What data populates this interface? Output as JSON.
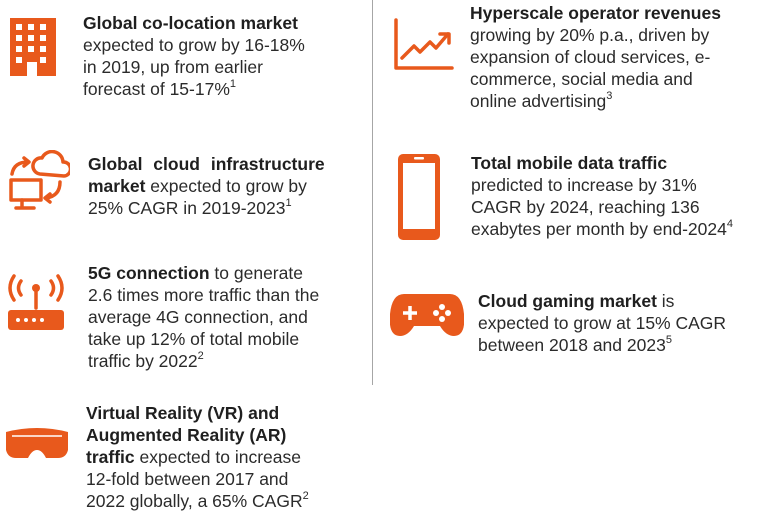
{
  "colors": {
    "accent": "#e8591c",
    "text": "#2b2b2b",
    "divider": "#a6a6a6"
  },
  "items": [
    {
      "icon": "office-building-icon",
      "bold": "Global co-location market",
      "lines": [
        "expected to grow by 16-18%",
        "in 2019, up from earlier",
        "forecast of 15-17%"
      ],
      "sup": "1"
    },
    {
      "icon": "cloud-computer-sync-icon",
      "bold1": "Global cloud infrastructure",
      "bold2": "market",
      "line2": "expected to grow by",
      "line3": "25% CAGR in 2019-2023",
      "sup": "1"
    },
    {
      "icon": "wifi-router-icon",
      "bold": "5G connection",
      "line1": "to generate",
      "lines": [
        "2.6 times more traffic than the",
        "average 4G connection, and",
        "take up 12% of total mobile",
        "traffic by 2022"
      ],
      "sup": "2"
    },
    {
      "icon": "vr-headset-icon",
      "bold": [
        "Virtual Reality (VR) and",
        "Augmented Reality (AR)",
        "traffic"
      ],
      "line3": "expected to increase",
      "lines": [
        "12-fold between 2017 and",
        "2022 globally, a 65% CAGR"
      ],
      "sup": "2"
    },
    {
      "icon": "growth-chart-icon",
      "bold": "Hyperscale operator revenues",
      "lines": [
        "growing by 20% p.a., driven by",
        "expansion of cloud services, e-",
        "commerce, social media and",
        "online advertising"
      ],
      "sup": "3"
    },
    {
      "icon": "smartphone-icon",
      "bold": "Total mobile data traffic",
      "lines": [
        "predicted to increase by 31%",
        "CAGR by 2024, reaching 136",
        "exabytes per month by end-2024"
      ],
      "sup": "4"
    },
    {
      "icon": "gamepad-icon",
      "bold": "Cloud gaming market",
      "line1": "is",
      "lines": [
        "expected to grow at 15% CAGR",
        "between 2018 and 2023"
      ],
      "sup": "5"
    }
  ]
}
